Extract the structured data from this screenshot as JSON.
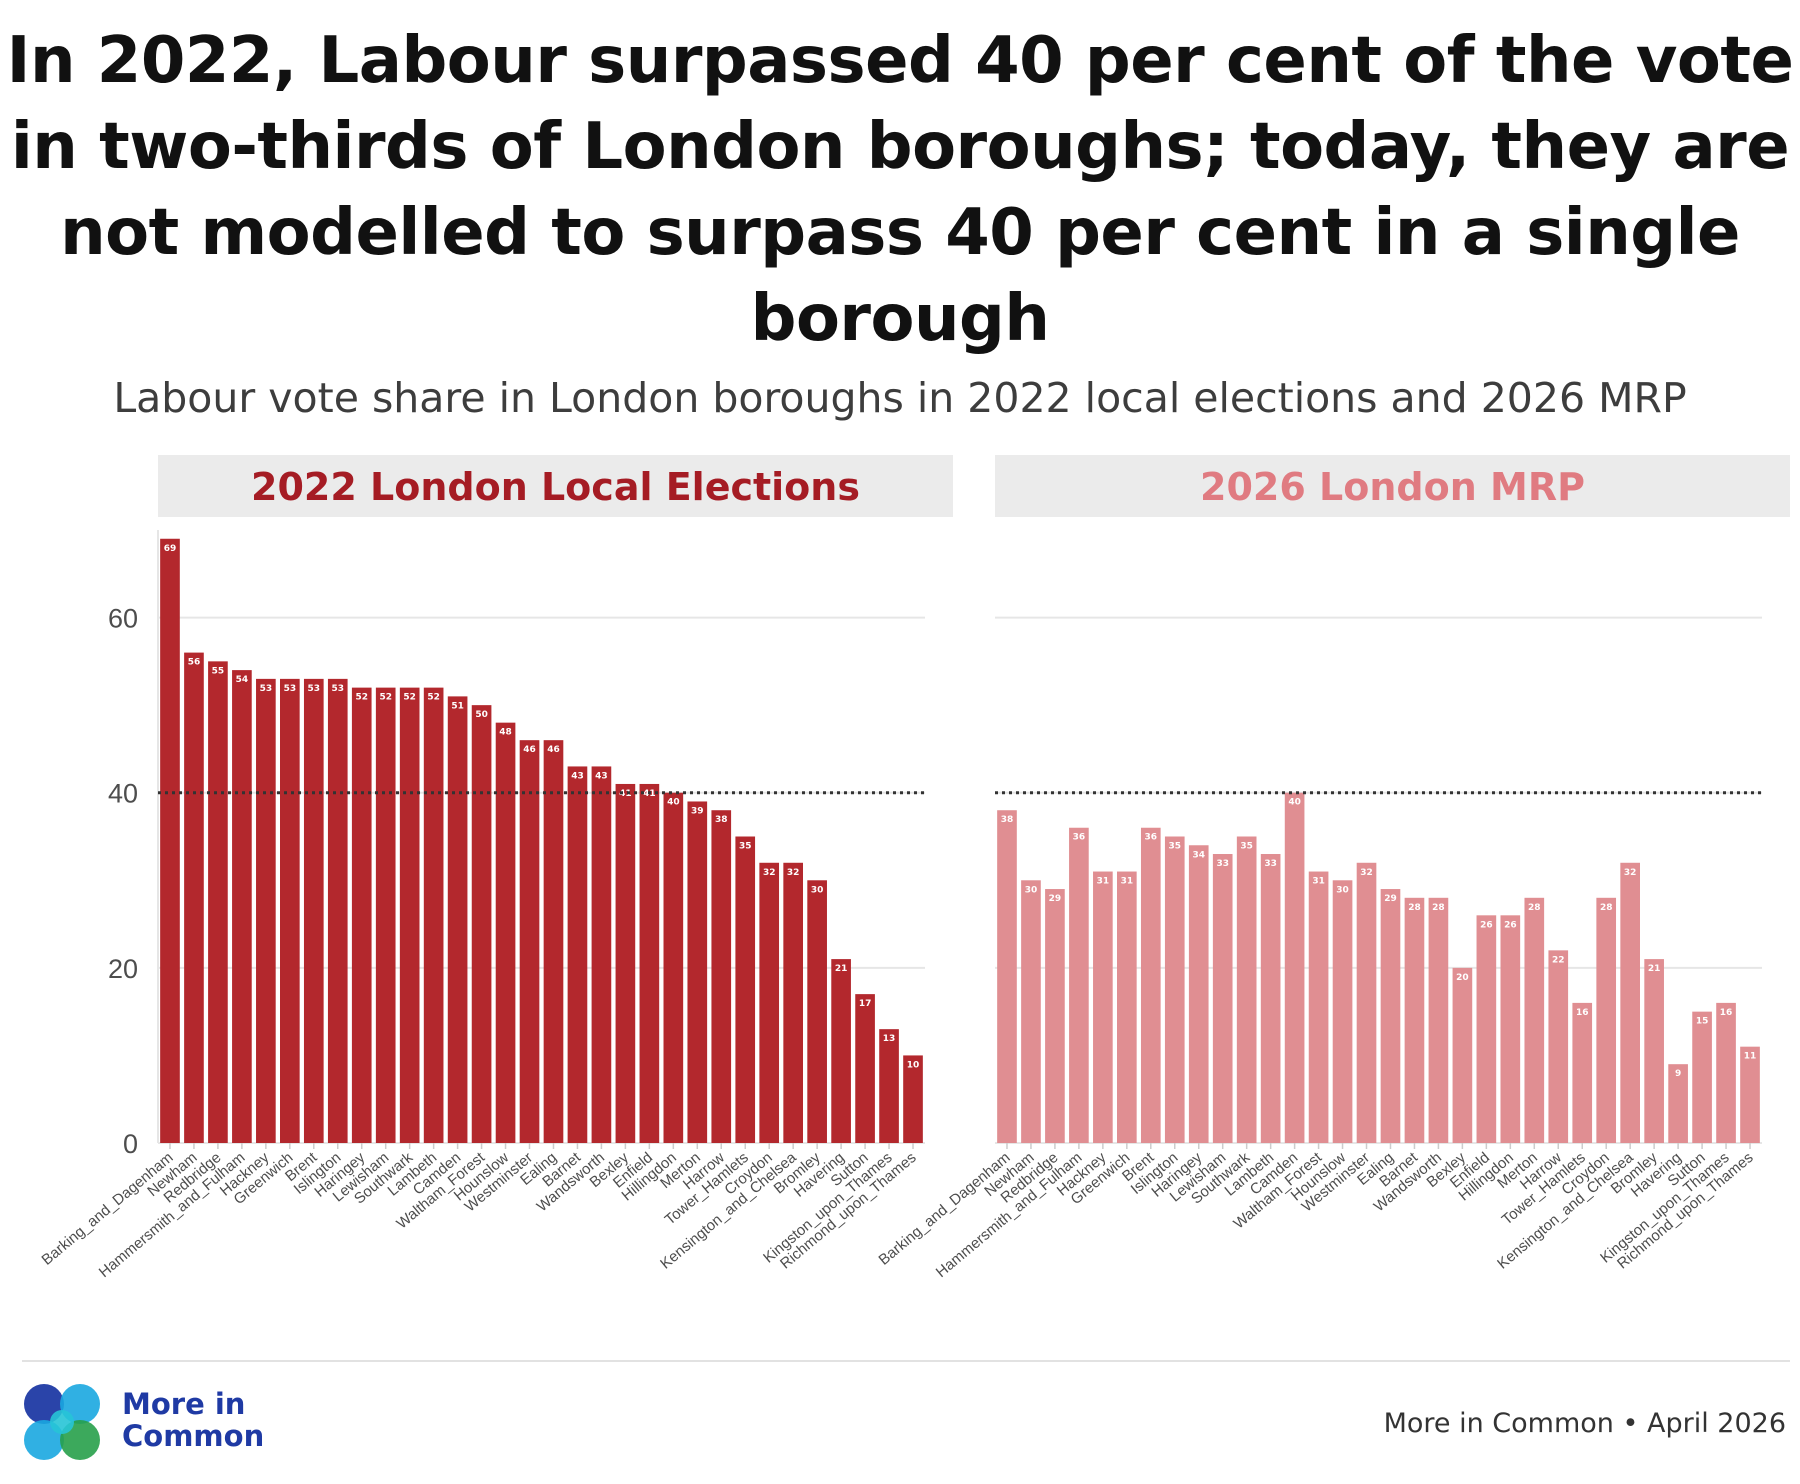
{
  "title": "In 2022, Labour surpassed 40 per cent of the vote in two-thirds of London boroughs; today, they are not modelled to surpass 40 per cent in a single borough",
  "subtitle": "Labour vote share in London boroughs in 2022 local elections and 2026 MRP",
  "brand": {
    "line1": "More in",
    "line2": "Common"
  },
  "source": "More in Common • April 2026",
  "colors": {
    "panel1": "#b3282d",
    "panel1_title": "#a51c24",
    "panel2": "#e08e92",
    "panel2_title": "#e07b81",
    "strip": "#ebebeb",
    "brand_blue": "#1f3aa4"
  },
  "chart_data": [
    {
      "type": "bar",
      "title": "2022 London Local Elections",
      "categories": [
        "Barking_and_Dagenham",
        "Newham",
        "Redbridge",
        "Hammersmith_and_Fulham",
        "Hackney",
        "Greenwich",
        "Brent",
        "Islington",
        "Haringey",
        "Lewisham",
        "Southwark",
        "Lambeth",
        "Camden",
        "Waltham_Forest",
        "Hounslow",
        "Westminster",
        "Ealing",
        "Barnet",
        "Wandsworth",
        "Bexley",
        "Enfield",
        "Hillingdon",
        "Merton",
        "Harrow",
        "Tower_Hamlets",
        "Croydon",
        "Kensington_and_Chelsea",
        "Bromley",
        "Havering",
        "Sutton",
        "Kingston_upon_Thames",
        "Richmond_upon_Thames"
      ],
      "values": [
        69,
        56,
        55,
        54,
        53,
        53,
        53,
        53,
        52,
        52,
        52,
        52,
        51,
        50,
        48,
        46,
        46,
        43,
        43,
        41,
        41,
        40,
        39,
        38,
        35,
        32,
        32,
        30,
        21,
        17,
        13,
        10
      ],
      "yticks": [
        0,
        20,
        40,
        60
      ],
      "ylim": [
        0,
        70
      ],
      "reference_line": 40,
      "xlabel": "",
      "ylabel": ""
    },
    {
      "type": "bar",
      "title": "2026 London MRP",
      "categories": [
        "Barking_and_Dagenham",
        "Newham",
        "Redbridge",
        "Hammersmith_and_Fulham",
        "Hackney",
        "Greenwich",
        "Brent",
        "Islington",
        "Haringey",
        "Lewisham",
        "Southwark",
        "Lambeth",
        "Camden",
        "Waltham_Forest",
        "Hounslow",
        "Westminster",
        "Ealing",
        "Barnet",
        "Wandsworth",
        "Bexley",
        "Enfield",
        "Hillingdon",
        "Merton",
        "Harrow",
        "Tower_Hamlets",
        "Croydon",
        "Kensington_and_Chelsea",
        "Bromley",
        "Havering",
        "Sutton",
        "Kingston_upon_Thames",
        "Richmond_upon_Thames"
      ],
      "values": [
        38,
        30,
        29,
        36,
        31,
        31,
        36,
        35,
        34,
        33,
        35,
        33,
        40,
        31,
        30,
        32,
        29,
        28,
        28,
        20,
        26,
        26,
        28,
        22,
        16,
        28,
        32,
        21,
        9,
        15,
        16,
        11
      ],
      "ylim": [
        0,
        70
      ],
      "reference_line": 40,
      "xlabel": "",
      "ylabel": ""
    }
  ]
}
